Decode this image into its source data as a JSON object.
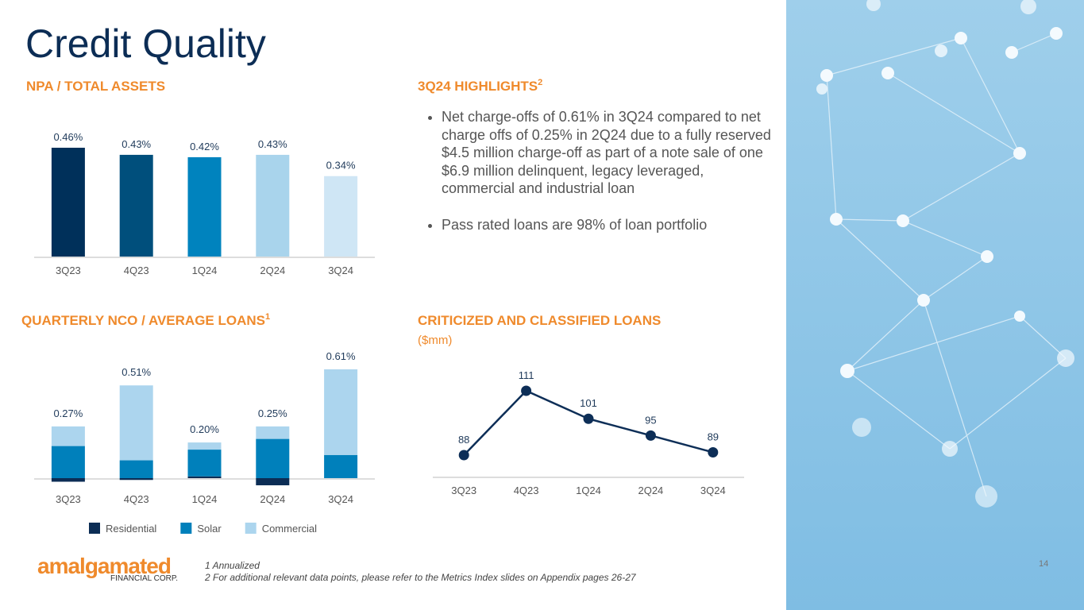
{
  "title": "Credit Quality",
  "highlights": {
    "title": "3Q24 HIGHLIGHTS",
    "title_sup": "2",
    "items": [
      "Net charge-offs of 0.61% in 3Q24 compared to net charge offs of 0.25% in 2Q24 due to a fully reserved $4.5 million charge-off as part of a note sale of one $6.9 million delinquent, legacy leveraged, commercial and industrial loan",
      "Pass rated loans are 98% of loan portfolio"
    ]
  },
  "chart_data": [
    {
      "type": "bar",
      "title": "NPA / TOTAL ASSETS",
      "categories": [
        "3Q23",
        "4Q23",
        "1Q24",
        "2Q24",
        "3Q24"
      ],
      "values": [
        0.46,
        0.43,
        0.42,
        0.43,
        0.34
      ],
      "value_labels": [
        "0.46%",
        "0.43%",
        "0.42%",
        "0.43%",
        "0.34%"
      ],
      "colors": [
        "#00305a",
        "#004f7c",
        "#0083be",
        "#a9d4ec",
        "#cfe6f5"
      ]
    },
    {
      "type": "stacked_bar",
      "title": "QUARTERLY NCO / AVERAGE LOANS",
      "title_sup": "1",
      "categories": [
        "3Q23",
        "4Q23",
        "1Q24",
        "2Q24",
        "3Q24"
      ],
      "series": [
        {
          "name": "Residential",
          "color": "#0c2d55",
          "values": [
            -0.02,
            -0.01,
            0.01,
            -0.04,
            0
          ]
        },
        {
          "name": "Solar",
          "color": "#0080bb",
          "values": [
            0.18,
            0.1,
            0.15,
            0.22,
            0.13
          ]
        },
        {
          "name": "Commercial",
          "color": "#acd5ee",
          "values": [
            0.11,
            0.42,
            0.04,
            0.07,
            0.48
          ]
        }
      ],
      "totals": [
        0.27,
        0.51,
        0.2,
        0.25,
        0.61
      ],
      "total_labels": [
        "0.27%",
        "0.51%",
        "0.20%",
        "0.25%",
        "0.61%"
      ],
      "legend": "bottom"
    },
    {
      "type": "line",
      "title": "CRITICIZED AND CLASSIFIED LOANS",
      "subtitle": "($mm)",
      "categories": [
        "3Q23",
        "4Q23",
        "1Q24",
        "2Q24",
        "3Q24"
      ],
      "values": [
        88,
        111,
        101,
        95,
        89
      ],
      "color": "#0d2e57"
    }
  ],
  "footnotes": [
    "1 Annualized",
    "2 For additional relevant data points, please refer to the Metrics Index slides on Appendix pages 26-27"
  ],
  "logo": {
    "name": "amalgamated",
    "sub": "FINANCIAL CORP."
  },
  "page_number": "14"
}
